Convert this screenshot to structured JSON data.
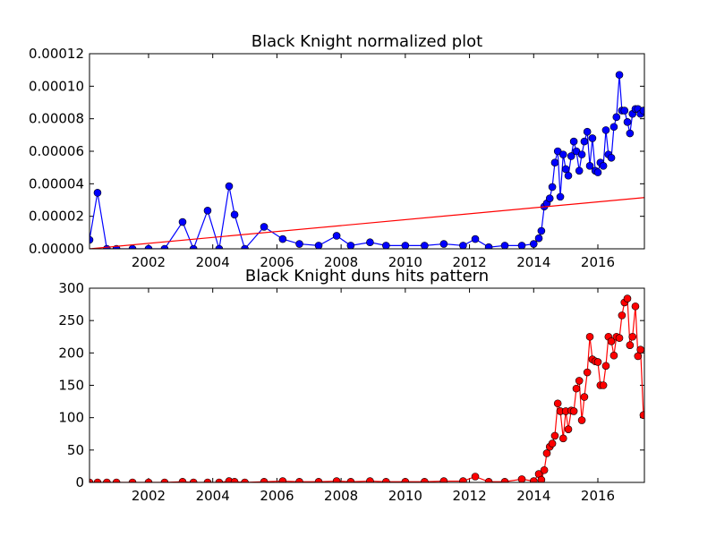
{
  "chart_data": [
    {
      "type": "line",
      "title": "Black Knight normalized plot",
      "x": [
        2000.16,
        2000.41,
        2000.7,
        2001.0,
        2001.5,
        2002.0,
        2002.5,
        2003.06,
        2003.4,
        2003.84,
        2004.2,
        2004.51,
        2004.68,
        2005.0,
        2005.6,
        2006.18,
        2006.7,
        2007.3,
        2007.86,
        2008.3,
        2008.9,
        2009.4,
        2010.0,
        2010.6,
        2011.2,
        2011.8,
        2012.18,
        2012.6,
        2013.1,
        2013.63,
        2014.0,
        2014.16,
        2014.24,
        2014.33,
        2014.41,
        2014.5,
        2014.58,
        2014.66,
        2014.75,
        2014.83,
        2014.92,
        2015.0,
        2015.08,
        2015.17,
        2015.25,
        2015.33,
        2015.42,
        2015.5,
        2015.58,
        2015.67,
        2015.75,
        2015.83,
        2015.92,
        2016.0,
        2016.08,
        2016.17,
        2016.25,
        2016.33,
        2016.42,
        2016.5,
        2016.58,
        2016.67,
        2016.75,
        2016.83,
        2016.92,
        2017.0,
        2017.08,
        2017.17,
        2017.25,
        2017.33,
        2017.42
      ],
      "values": [
        5.5e-06,
        3.45e-05,
        0,
        0,
        0,
        0,
        0,
        1.65e-05,
        0,
        2.35e-05,
        0,
        3.85e-05,
        2.1e-05,
        0,
        1.35e-05,
        6e-06,
        3e-06,
        2e-06,
        8e-06,
        2e-06,
        4e-06,
        2e-06,
        2e-06,
        2e-06,
        3e-06,
        2e-06,
        6e-06,
        1e-06,
        2e-06,
        2e-06,
        3e-06,
        6.5e-06,
        1.1e-05,
        2.6e-05,
        2.8e-05,
        3.1e-05,
        3.8e-05,
        5.3e-05,
        6e-05,
        3.2e-05,
        5.8e-05,
        4.9e-05,
        4.5e-05,
        5.7e-05,
        6.6e-05,
        6e-05,
        4.8e-05,
        5.8e-05,
        6.6e-05,
        7.2e-05,
        5.1e-05,
        6.8e-05,
        4.8e-05,
        4.7e-05,
        5.3e-05,
        5.1e-05,
        7.3e-05,
        5.8e-05,
        5.6e-05,
        7.5e-05,
        8.1e-05,
        0.000107,
        8.5e-05,
        8.5e-05,
        7.8e-05,
        7.1e-05,
        8.3e-05,
        8.6e-05,
        8.6e-05,
        8.3e-05,
        8.5e-05
      ],
      "color": "#0000ff",
      "trend_line": {
        "x": [
          2000.16,
          2017.45
        ],
        "values": [
          0,
          3.15e-05
        ],
        "color": "#ff0000"
      },
      "xlim": [
        2000.16,
        2017.45
      ],
      "xticks": [
        2002,
        2004,
        2006,
        2008,
        2010,
        2012,
        2014,
        2016
      ],
      "ylim": [
        0,
        0.00012
      ],
      "yticks": [
        {
          "value": 0,
          "label": "0.00000"
        },
        {
          "value": 2e-05,
          "label": "0.00002"
        },
        {
          "value": 4e-05,
          "label": "0.00004"
        },
        {
          "value": 6e-05,
          "label": "0.00006"
        },
        {
          "value": 8e-05,
          "label": "0.00008"
        },
        {
          "value": 0.0001,
          "label": "0.00010"
        },
        {
          "value": 0.00012,
          "label": "0.00012"
        }
      ]
    },
    {
      "type": "line",
      "title": "Black Knight duns hits pattern",
      "x": [
        2000.16,
        2000.41,
        2000.7,
        2001.0,
        2001.5,
        2002.0,
        2002.5,
        2003.06,
        2003.4,
        2003.84,
        2004.2,
        2004.51,
        2004.68,
        2005.0,
        2005.6,
        2006.18,
        2006.7,
        2007.3,
        2007.86,
        2008.3,
        2008.9,
        2009.4,
        2010.0,
        2010.6,
        2011.2,
        2011.8,
        2012.18,
        2012.6,
        2013.1,
        2013.63,
        2014.0,
        2014.16,
        2014.24,
        2014.33,
        2014.41,
        2014.5,
        2014.58,
        2014.66,
        2014.75,
        2014.83,
        2014.92,
        2015.0,
        2015.08,
        2015.17,
        2015.25,
        2015.33,
        2015.42,
        2015.5,
        2015.58,
        2015.67,
        2015.75,
        2015.83,
        2015.92,
        2016.0,
        2016.08,
        2016.17,
        2016.25,
        2016.33,
        2016.42,
        2016.5,
        2016.58,
        2016.67,
        2016.75,
        2016.83,
        2016.92,
        2017.0,
        2017.08,
        2017.17,
        2017.25,
        2017.33,
        2017.42
      ],
      "values": [
        0,
        0,
        0,
        0,
        0,
        0,
        0,
        1,
        0,
        0,
        0,
        2,
        1,
        0,
        1,
        2,
        1,
        1,
        2,
        1,
        2,
        1,
        1,
        1,
        2,
        2,
        9,
        1,
        1,
        5,
        2,
        13,
        4,
        19,
        45,
        55,
        60,
        72,
        122,
        110,
        68,
        110,
        82,
        111,
        110,
        145,
        157,
        96,
        132,
        170,
        225,
        190,
        187,
        186,
        150,
        150,
        180,
        225,
        218,
        196,
        225,
        223,
        258,
        278,
        284,
        212,
        225,
        272,
        195,
        205,
        104
      ],
      "color": "#ff0000",
      "xlim": [
        2000.16,
        2017.45
      ],
      "xticks": [
        2002,
        2004,
        2006,
        2008,
        2010,
        2012,
        2014,
        2016
      ],
      "ylim": [
        0,
        300
      ],
      "yticks": [
        0,
        50,
        100,
        150,
        200,
        250,
        300
      ]
    }
  ]
}
